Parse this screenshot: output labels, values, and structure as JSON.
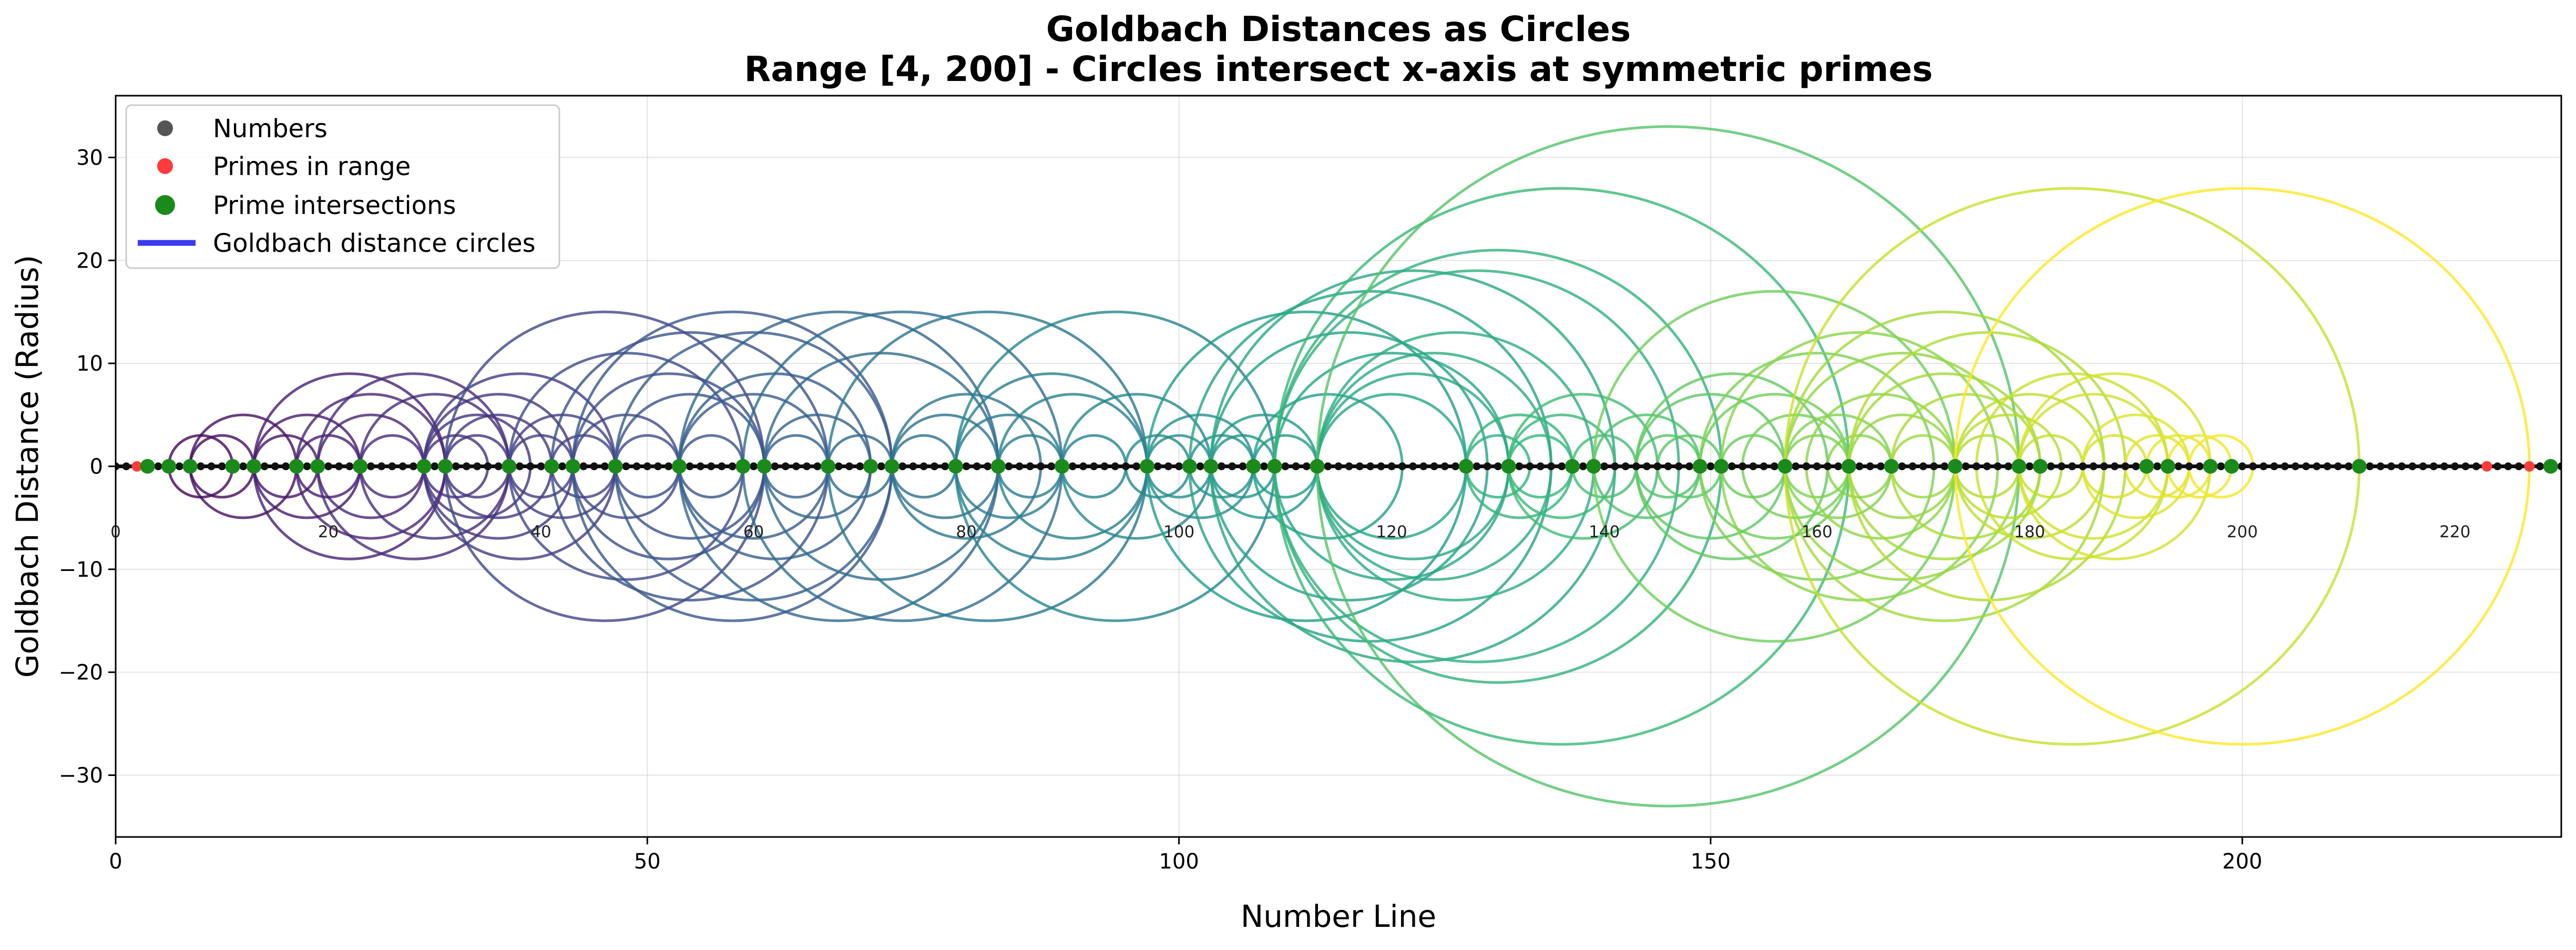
{
  "chart_data": {
    "type": "scatter",
    "title": "Goldbach Distances as Circles",
    "subtitle": "Range [4, 200] - Circles intersect x-axis at symmetric primes",
    "xlabel": "Number Line",
    "ylabel": "Goldbach Distance (Radius)",
    "xlim": [
      0,
      230
    ],
    "ylim": [
      -36,
      36
    ],
    "x_ticks": [
      0,
      50,
      100,
      150,
      200
    ],
    "y_ticks": [
      -30,
      -20,
      -10,
      0,
      10,
      20,
      30
    ],
    "number_labels": [
      0,
      20,
      40,
      60,
      80,
      100,
      120,
      140,
      160,
      180,
      200,
      220
    ],
    "grid": true,
    "legend_position": "upper-left",
    "legend": [
      {
        "label": "Numbers",
        "marker": "dot",
        "color": "#555555"
      },
      {
        "label": "Primes in range",
        "marker": "dot",
        "color": "#ff3b3b"
      },
      {
        "label": "Prime intersections",
        "marker": "dot",
        "color": "#1a8a1a"
      },
      {
        "label": "Goldbach distance circles",
        "marker": "line",
        "color": "#3a3af0"
      }
    ],
    "colors": {
      "numbers": "#111111",
      "primes": "#ff3b3b",
      "intersections": "#1a8a1a",
      "axis_line": "#000000",
      "colormap": "viridis"
    },
    "numbers_range": [
      0,
      230
    ],
    "primes_in_range": [
      2,
      223,
      227,
      229
    ],
    "prime_intersections": [
      3,
      5,
      7,
      11,
      13,
      17,
      19,
      23,
      29,
      31,
      37,
      41,
      43,
      47,
      53,
      59,
      61,
      67,
      71,
      73,
      79,
      83,
      89,
      97,
      101,
      103,
      107,
      109,
      113,
      127,
      131,
      137,
      139,
      149,
      151,
      157,
      163,
      167,
      173,
      179,
      181,
      191,
      193,
      197,
      199,
      211,
      229
    ],
    "circles": [
      {
        "center": 8,
        "radii": [
          3
        ]
      },
      {
        "center": 10,
        "radii": [
          3
        ]
      },
      {
        "center": 12,
        "radii": [
          5
        ]
      },
      {
        "center": 16,
        "radii": [
          3
        ]
      },
      {
        "center": 18,
        "radii": [
          5
        ]
      },
      {
        "center": 20,
        "radii": [
          3
        ]
      },
      {
        "center": 22,
        "radii": [
          9
        ]
      },
      {
        "center": 24,
        "radii": [
          5,
          7
        ]
      },
      {
        "center": 26,
        "radii": [
          3
        ]
      },
      {
        "center": 28,
        "radii": [
          9
        ]
      },
      {
        "center": 30,
        "radii": [
          7
        ]
      },
      {
        "center": 32,
        "radii": [
          3
        ]
      },
      {
        "center": 34,
        "radii": [
          3,
          5
        ]
      },
      {
        "center": 36,
        "radii": [
          5,
          7
        ]
      },
      {
        "center": 38,
        "radii": [
          9
        ]
      },
      {
        "center": 40,
        "radii": [
          3
        ]
      },
      {
        "center": 42,
        "radii": [
          5
        ]
      },
      {
        "center": 44,
        "radii": [
          3
        ]
      },
      {
        "center": 46,
        "radii": [
          15
        ]
      },
      {
        "center": 48,
        "radii": [
          5,
          11
        ]
      },
      {
        "center": 50,
        "radii": [
          3
        ]
      },
      {
        "center": 52,
        "radii": [
          9
        ]
      },
      {
        "center": 54,
        "radii": [
          7,
          13
        ]
      },
      {
        "center": 56,
        "radii": [
          3
        ]
      },
      {
        "center": 58,
        "radii": [
          15
        ]
      },
      {
        "center": 60,
        "radii": [
          7,
          13
        ]
      },
      {
        "center": 62,
        "radii": [
          9
        ]
      },
      {
        "center": 64,
        "radii": [
          3
        ]
      },
      {
        "center": 66,
        "radii": [
          5
        ]
      },
      {
        "center": 68,
        "radii": [
          15
        ]
      },
      {
        "center": 70,
        "radii": [
          3
        ]
      },
      {
        "center": 72,
        "radii": [
          11
        ]
      },
      {
        "center": 74,
        "radii": [
          15
        ]
      },
      {
        "center": 76,
        "radii": [
          3
        ]
      },
      {
        "center": 78,
        "radii": [
          5
        ]
      },
      {
        "center": 80,
        "radii": [
          7
        ]
      },
      {
        "center": 82,
        "radii": [
          15
        ]
      },
      {
        "center": 84,
        "radii": [
          5
        ]
      },
      {
        "center": 86,
        "radii": [
          3
        ]
      },
      {
        "center": 88,
        "radii": [
          9
        ]
      },
      {
        "center": 90,
        "radii": [
          7
        ]
      },
      {
        "center": 92,
        "radii": [
          3
        ]
      },
      {
        "center": 94,
        "radii": [
          15
        ]
      },
      {
        "center": 96,
        "radii": [
          7
        ]
      },
      {
        "center": 98,
        "radii": [
          3
        ]
      },
      {
        "center": 100,
        "radii": [
          3
        ]
      },
      {
        "center": 102,
        "radii": [
          5
        ]
      },
      {
        "center": 104,
        "radii": [
          3
        ]
      },
      {
        "center": 106,
        "radii": [
          3
        ]
      },
      {
        "center": 108,
        "radii": [
          5
        ]
      },
      {
        "center": 110,
        "radii": [
          3
        ]
      },
      {
        "center": 112,
        "radii": [
          15
        ]
      },
      {
        "center": 114,
        "radii": [
          7
        ]
      },
      {
        "center": 116,
        "radii": [
          13
        ]
      },
      {
        "center": 118,
        "radii": [
          17
        ]
      },
      {
        "center": 120,
        "radii": [
          7,
          11
        ]
      },
      {
        "center": 122,
        "radii": [
          9,
          19
        ]
      },
      {
        "center": 124,
        "radii": [
          11
        ]
      },
      {
        "center": 126,
        "radii": [
          13
        ]
      },
      {
        "center": 128,
        "radii": [
          19
        ]
      },
      {
        "center": 130,
        "radii": [
          3,
          21
        ]
      },
      {
        "center": 132,
        "radii": [
          5
        ]
      },
      {
        "center": 134,
        "radii": [
          3
        ]
      },
      {
        "center": 136,
        "radii": [
          5,
          27
        ]
      },
      {
        "center": 138,
        "radii": [
          7
        ]
      },
      {
        "center": 140,
        "radii": [
          3
        ]
      },
      {
        "center": 144,
        "radii": [
          5
        ]
      },
      {
        "center": 146,
        "radii": [
          3,
          33
        ]
      },
      {
        "center": 148,
        "radii": [
          3
        ]
      },
      {
        "center": 150,
        "radii": [
          7
        ]
      },
      {
        "center": 152,
        "radii": [
          9
        ]
      },
      {
        "center": 154,
        "radii": [
          3
        ]
      },
      {
        "center": 156,
        "radii": [
          7,
          17
        ]
      },
      {
        "center": 158,
        "radii": [
          5
        ]
      },
      {
        "center": 160,
        "radii": [
          3,
          11
        ]
      },
      {
        "center": 162,
        "radii": [
          5
        ]
      },
      {
        "center": 164,
        "radii": [
          3,
          13
        ]
      },
      {
        "center": 166,
        "radii": [
          7
        ]
      },
      {
        "center": 168,
        "radii": [
          5,
          11
        ]
      },
      {
        "center": 170,
        "radii": [
          3
        ]
      },
      {
        "center": 172,
        "radii": [
          9,
          15
        ]
      },
      {
        "center": 174,
        "radii": [
          7
        ]
      },
      {
        "center": 176,
        "radii": [
          3,
          13
        ]
      },
      {
        "center": 178,
        "radii": [
          5
        ]
      },
      {
        "center": 180,
        "radii": [
          7
        ]
      },
      {
        "center": 182,
        "radii": [
          3
        ]
      },
      {
        "center": 184,
        "radii": [
          9,
          27
        ]
      },
      {
        "center": 186,
        "radii": [
          7
        ]
      },
      {
        "center": 188,
        "radii": [
          3,
          9
        ]
      },
      {
        "center": 190,
        "radii": [
          5
        ]
      },
      {
        "center": 192,
        "radii": [
          3
        ]
      },
      {
        "center": 194,
        "radii": [
          3
        ]
      },
      {
        "center": 196,
        "radii": [
          3
        ]
      },
      {
        "center": 198,
        "radii": [
          3
        ]
      },
      {
        "center": 200,
        "radii": [
          27
        ]
      }
    ]
  }
}
